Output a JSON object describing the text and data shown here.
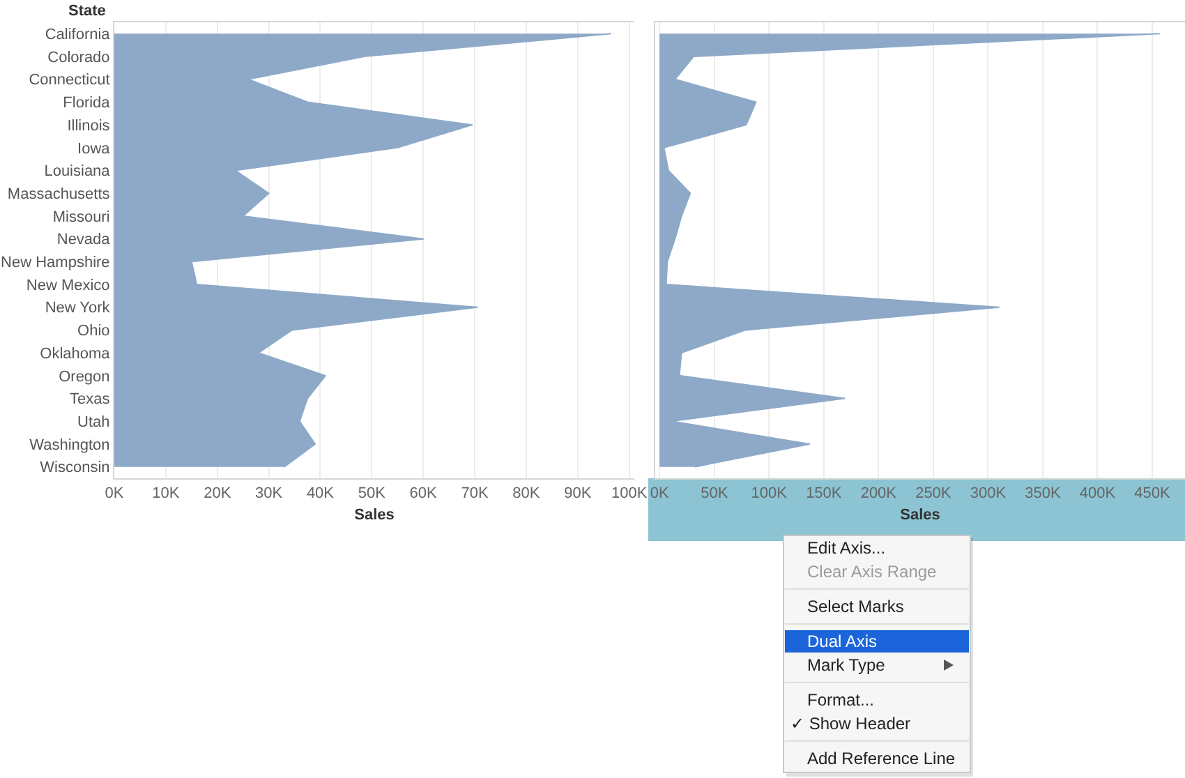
{
  "chart_data": [
    {
      "type": "area",
      "orientation": "horizontal",
      "ylabel": "State",
      "xlabel": "Sales",
      "categories": [
        "California",
        "Colorado",
        "Connecticut",
        "Florida",
        "Illinois",
        "Iowa",
        "Louisiana",
        "Massachusetts",
        "Missouri",
        "Nevada",
        "New Hampshire",
        "New Mexico",
        "New York",
        "Ohio",
        "Oklahoma",
        "Oregon",
        "Texas",
        "Utah",
        "Washington",
        "Wisconsin"
      ],
      "values": [
        96500,
        48500,
        26000,
        37500,
        69500,
        55000,
        23500,
        30000,
        25000,
        60000,
        15000,
        16000,
        70500,
        34500,
        28000,
        41000,
        37500,
        36000,
        39000,
        33000
      ],
      "color": "#8ea9c8",
      "xlim": [
        0,
        101000
      ],
      "xticks": [
        {
          "value": 0,
          "label": "0K"
        },
        {
          "value": 10000,
          "label": "10K"
        },
        {
          "value": 20000,
          "label": "20K"
        },
        {
          "value": 30000,
          "label": "30K"
        },
        {
          "value": 40000,
          "label": "40K"
        },
        {
          "value": 50000,
          "label": "50K"
        },
        {
          "value": 60000,
          "label": "60K"
        },
        {
          "value": 70000,
          "label": "70K"
        },
        {
          "value": 80000,
          "label": "80K"
        },
        {
          "value": 90000,
          "label": "90K"
        },
        {
          "value": 100000,
          "label": "100K"
        }
      ],
      "grid": "x"
    },
    {
      "type": "area",
      "orientation": "horizontal",
      "xlabel": "Sales",
      "categories": [
        "California",
        "Colorado",
        "Connecticut",
        "Florida",
        "Illinois",
        "Iowa",
        "Louisiana",
        "Massachusetts",
        "Missouri",
        "Nevada",
        "New Hampshire",
        "New Mexico",
        "New York",
        "Ohio",
        "Oklahoma",
        "Oregon",
        "Texas",
        "Utah",
        "Washington",
        "Wisconsin"
      ],
      "values": [
        457000,
        31000,
        14000,
        88000,
        79000,
        4000,
        8000,
        28000,
        20000,
        14000,
        7000,
        6000,
        310000,
        78000,
        20000,
        18000,
        169000,
        11000,
        137000,
        32000
      ],
      "color": "#8ea9c8",
      "xlim": [
        -4000,
        480000
      ],
      "xticks": [
        {
          "value": 0,
          "label": "0K"
        },
        {
          "value": 50000,
          "label": "50K"
        },
        {
          "value": 100000,
          "label": "100K"
        },
        {
          "value": 150000,
          "label": "150K"
        },
        {
          "value": 200000,
          "label": "200K"
        },
        {
          "value": 250000,
          "label": "250K"
        },
        {
          "value": 300000,
          "label": "300K"
        },
        {
          "value": 350000,
          "label": "350K"
        },
        {
          "value": 400000,
          "label": "400K"
        },
        {
          "value": 450000,
          "label": "450K"
        }
      ],
      "grid": "x",
      "tick_labels": "x"
    },
    {
      "type": "other",
      "annotations": [
        "Edit Axis...",
        "Clear Axis Range",
        "Select Marks",
        "Dual Axis",
        "Mark Type",
        "Format...",
        "✓ Show Header",
        "Add Reference Line"
      ]
    }
  ]
}
